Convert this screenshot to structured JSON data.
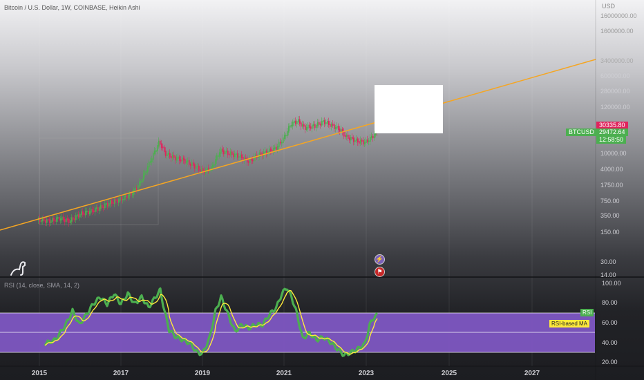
{
  "header": {
    "title": "Bitcoin / U.S. Dollar, 1W, COINBASE, Heikin Ashi",
    "currency": "USD"
  },
  "price_scale": {
    "ticks": [
      "16000000.00",
      "1600000.00",
      "3400000.00",
      "600000.00",
      "280000.00",
      "120000.00",
      "10000.00",
      "4000.00",
      "1750.00",
      "750.00",
      "350.00",
      "150.00",
      "30.00",
      "14.00"
    ]
  },
  "price_tags": {
    "last_label": "30335.80",
    "symbol": "BTCUSD",
    "price": "29472.64",
    "countdown": "12:58:50"
  },
  "rsi_panel": {
    "legend": "RSI (14, close, SMA, 14, 2)",
    "ticks": [
      "100.00",
      "80.00",
      "60.00",
      "40.00",
      "20.00"
    ],
    "rsi_tag": "RSI",
    "ma_tag": "RSI-based MA"
  },
  "time_axis": {
    "ticks": [
      "2015",
      "2017",
      "2019",
      "2021",
      "2023",
      "2025",
      "2027"
    ]
  },
  "icons": {
    "logo": "dinosaur-logo-icon",
    "event1": "lightning-icon",
    "event2": "flag-icon"
  },
  "colors": {
    "up": "#4caf50",
    "down": "#e0245e",
    "trendline": "#f5a623",
    "rsi_line": "#4caf50",
    "rsi_ma": "#ffeb3b",
    "rsi_band": "#7e57c2",
    "price_label_bg": "#e0245e",
    "symbol_bg": "#4caf50"
  }
}
